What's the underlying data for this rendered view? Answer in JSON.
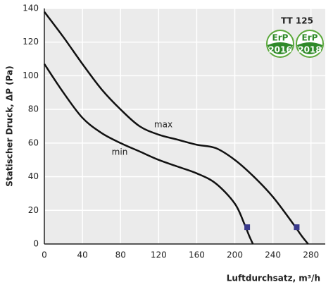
{
  "chart_data": {
    "type": "line",
    "title": "TT 125",
    "xlabel": "Luftdurchsatz, m³/h",
    "ylabel": "Statischer Druck, ΔP (Pa)",
    "xlim": [
      0,
      295
    ],
    "ylim": [
      0,
      140
    ],
    "xticks": [
      0,
      40,
      80,
      120,
      160,
      200,
      240,
      280
    ],
    "yticks": [
      0,
      20,
      40,
      60,
      80,
      100,
      120,
      140
    ],
    "grid": true,
    "series": [
      {
        "name": "max",
        "color": "#111111",
        "x": [
          0,
          20,
          40,
          60,
          80,
          100,
          120,
          140,
          160,
          180,
          200,
          220,
          240,
          260,
          270,
          277
        ],
        "values": [
          138,
          123,
          107,
          92,
          80,
          70,
          65,
          62,
          59,
          57,
          50,
          40,
          28,
          13,
          5,
          0
        ]
      },
      {
        "name": "min",
        "color": "#111111",
        "x": [
          0,
          20,
          40,
          60,
          80,
          100,
          120,
          140,
          160,
          180,
          200,
          210,
          215,
          219
        ],
        "values": [
          107,
          90,
          75,
          66,
          60,
          55,
          50,
          46,
          42,
          36,
          24,
          12,
          5,
          0
        ]
      }
    ],
    "points": {
      "color": "#3b3b8c",
      "x": [
        213,
        265
      ],
      "values": [
        10,
        10
      ]
    },
    "badges": [
      {
        "top": "ErP",
        "year": "2016"
      },
      {
        "top": "ErP",
        "year": "2018"
      }
    ]
  }
}
